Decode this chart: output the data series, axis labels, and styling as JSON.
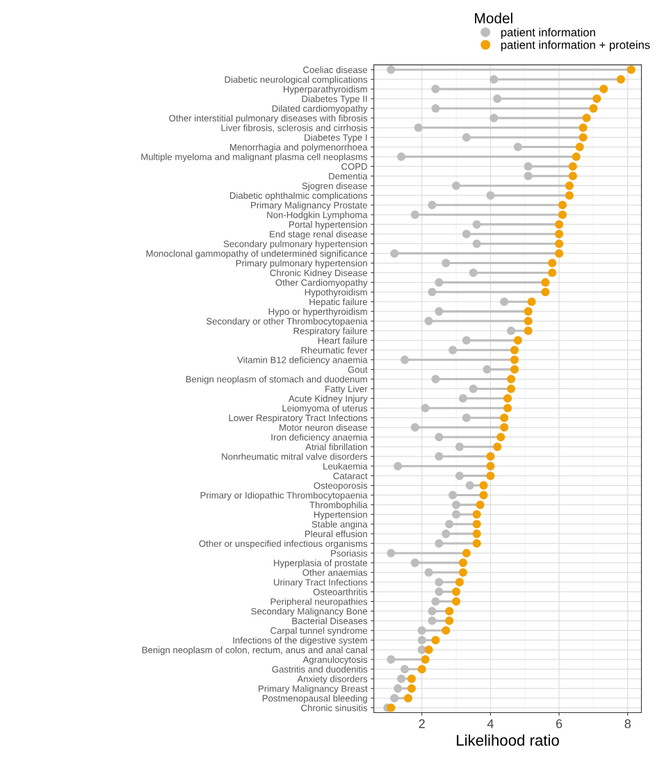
{
  "chart_data": {
    "type": "lollipop",
    "orientation": "horizontal",
    "categories": [
      "Coeliac disease",
      "Diabetic neurological complications",
      "Hyperparathyroidism",
      "Diabetes Type II",
      "Dilated cardiomyopathy",
      "Other interstitial pulmonary diseases with fibrosis",
      "Liver fibrosis, sclerosis and cirrhosis",
      "Diabetes Type I",
      "Menorrhagia and polymenorrhoea",
      "Multiple myeloma and malignant plasma cell neoplasms",
      "COPD",
      "Dementia",
      "Sjogren disease",
      "Diabetic ophthalmic complications",
      "Primary Malignancy Prostate",
      "Non-Hodgkin Lymphoma",
      "Portal hypertension",
      "End stage renal disease",
      "Secondary pulmonary hypertension",
      "Monoclonal gammopathy of undetermined significance",
      "Primary pulmonary hypertension",
      "Chronic Kidney Disease",
      "Other Cardiomyopathy",
      "Hypothyroidism",
      "Hepatic failure",
      "Hypo or hyperthyroidism",
      "Secondary or other Thrombocytopaenia",
      "Respiratory failure",
      "Heart failure",
      "Rheumatic fever",
      "Vitamin B12 deficiency anaemia",
      "Gout",
      "Benign neoplasm of stomach and duodenum",
      "Fatty Liver",
      "Acute Kidney Injury",
      "Leiomyoma of uterus",
      "Lower Respiratory Tract Infections",
      "Motor neuron disease",
      "Iron deficiency anaemia",
      "Atrial fibrillation",
      "Nonrheumatic mitral valve disorders",
      "Leukaemia",
      "Cataract",
      "Osteoporosis",
      "Primary or Idiopathic Thrombocytopaenia",
      "Thrombophilia",
      "Hypertension",
      "Stable angina",
      "Pleural effusion",
      "Other or unspecified infectious organisms",
      "Psoriasis",
      "Hyperplasia of prostate",
      "Other anaemias",
      "Urinary Tract Infections",
      "Osteoarthritis",
      "Peripheral neuropathies",
      "Secondary Malignancy Bone",
      "Bacterial Diseases",
      "Carpal tunnel syndrome",
      "Infections of the digestive system",
      "Benign neoplasm of colon, rectum, anus and anal canal",
      "Agranulocytosis",
      "Gastritis and duodenitis",
      "Anxiety disorders",
      "Primary Malignancy Breast",
      "Postmenopausal bleeding",
      "Chronic sinusitis"
    ],
    "series": [
      {
        "name": "patient information",
        "color": "#bdbdbd",
        "values": [
          1.1,
          4.1,
          2.4,
          4.2,
          2.4,
          4.1,
          1.9,
          3.3,
          4.8,
          1.4,
          5.1,
          5.1,
          3.0,
          4.0,
          2.3,
          1.8,
          3.6,
          3.3,
          3.6,
          1.2,
          2.7,
          3.5,
          2.5,
          2.3,
          4.4,
          2.5,
          2.2,
          4.6,
          3.3,
          2.9,
          1.5,
          3.9,
          2.4,
          3.5,
          3.2,
          2.1,
          3.3,
          1.8,
          2.5,
          3.1,
          2.5,
          1.3,
          3.1,
          3.4,
          2.9,
          3.0,
          3.0,
          2.8,
          2.7,
          2.5,
          1.1,
          1.8,
          2.2,
          2.5,
          2.5,
          2.4,
          2.3,
          2.3,
          2.0,
          2.0,
          2.0,
          1.1,
          1.5,
          1.4,
          1.3,
          1.2,
          1.0
        ]
      },
      {
        "name": "patient information + proteins",
        "color": "#f2a100",
        "values": [
          8.1,
          7.8,
          7.3,
          7.1,
          7.0,
          6.8,
          6.7,
          6.7,
          6.6,
          6.5,
          6.4,
          6.4,
          6.3,
          6.3,
          6.1,
          6.1,
          6.0,
          6.0,
          6.0,
          6.0,
          5.8,
          5.8,
          5.6,
          5.6,
          5.2,
          5.1,
          5.1,
          5.1,
          4.8,
          4.7,
          4.7,
          4.7,
          4.6,
          4.6,
          4.5,
          4.5,
          4.4,
          4.4,
          4.3,
          4.2,
          4.0,
          4.0,
          4.0,
          3.8,
          3.8,
          3.7,
          3.6,
          3.6,
          3.6,
          3.6,
          3.3,
          3.2,
          3.2,
          3.1,
          3.0,
          3.0,
          2.8,
          2.8,
          2.7,
          2.4,
          2.2,
          2.1,
          2.0,
          1.7,
          1.7,
          1.6,
          1.1
        ]
      }
    ],
    "xlabel": "Likelihood ratio",
    "legend_title": "Model",
    "xlim": [
      0.6,
      8.4
    ],
    "xticks": [
      2,
      4,
      6,
      8
    ],
    "grid": true,
    "legend": "top right",
    "marker": "circle"
  }
}
